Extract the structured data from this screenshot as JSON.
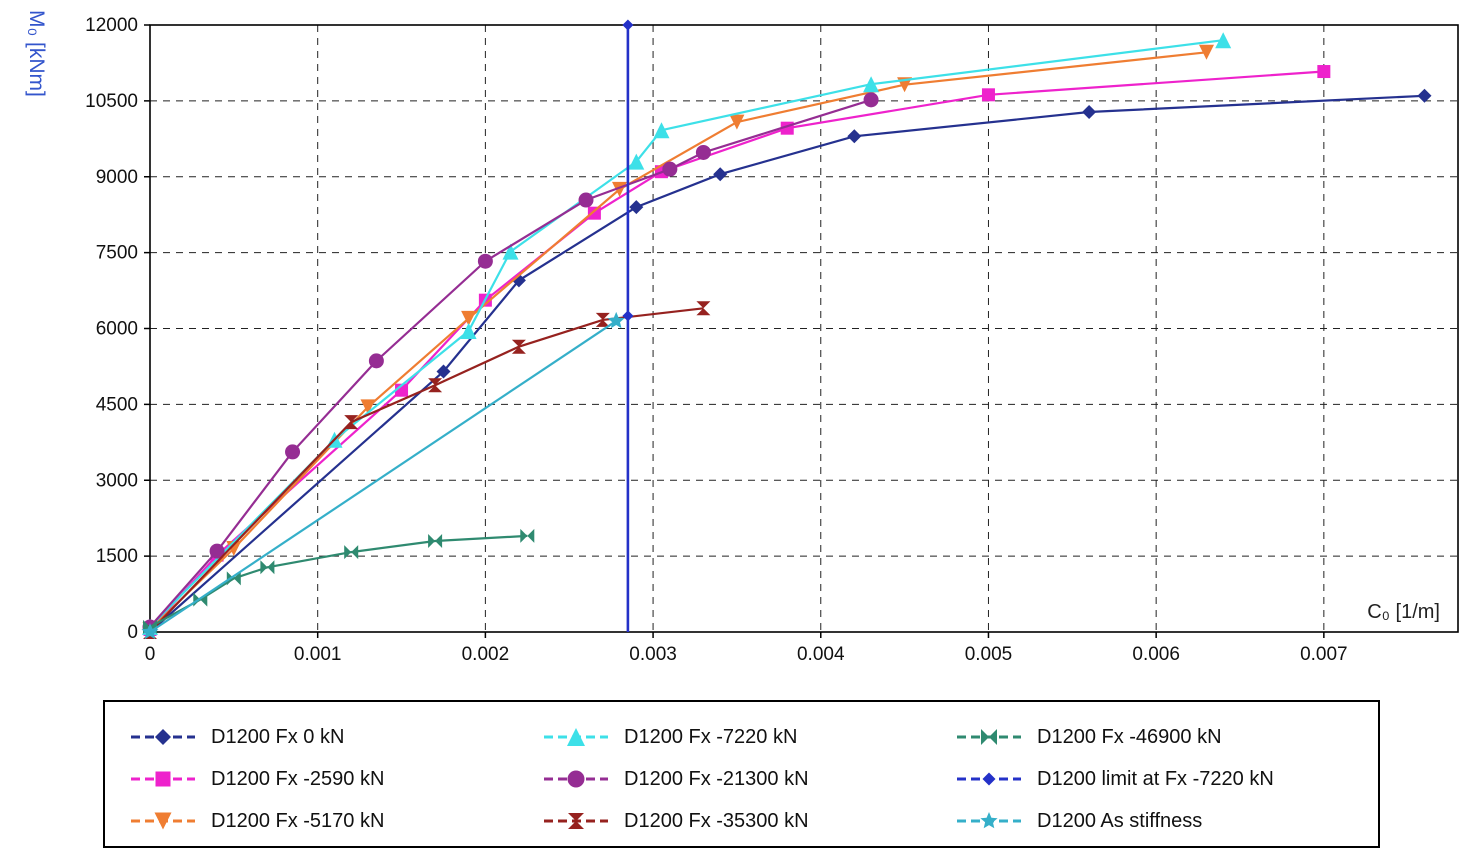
{
  "chart_data": {
    "type": "line",
    "title": "",
    "xlabel": "C₀ [1/m]",
    "ylabel": "M₀ [kNm]",
    "xlabel_color": "#222222",
    "ylabel_color": "#3355cc",
    "xlim": [
      0,
      0.0078
    ],
    "ylim": [
      0,
      12000
    ],
    "xticks": [
      0,
      0.001,
      0.002,
      0.003,
      0.004,
      0.005,
      0.006,
      0.007
    ],
    "yticks": [
      0,
      1500,
      3000,
      4500,
      6000,
      7500,
      9000,
      10500,
      12000
    ],
    "grid": "dashed",
    "legend_position": "bottom",
    "legend_columns": 3,
    "series": [
      {
        "name": "D1200 Fx 0 kN",
        "color": "#25318F",
        "marker": "diamond",
        "marker_size": 7,
        "points": [
          [
            0,
            0
          ],
          [
            0.00175,
            5150
          ],
          [
            0.0022,
            6950
          ],
          [
            0.0029,
            8400
          ],
          [
            0.0034,
            9050
          ],
          [
            0.0042,
            9800
          ],
          [
            0.0056,
            10280
          ],
          [
            0.0076,
            10600
          ]
        ]
      },
      {
        "name": "D1200 Fx -2590 kN",
        "color": "#EE22CC",
        "marker": "square",
        "marker_size": 6.5,
        "points": [
          [
            0,
            50
          ],
          [
            0.0004,
            1520
          ],
          [
            0.0015,
            4780
          ],
          [
            0.002,
            6560
          ],
          [
            0.00265,
            8280
          ],
          [
            0.00305,
            9100
          ],
          [
            0.0038,
            9960
          ],
          [
            0.005,
            10620
          ],
          [
            0.007,
            11080
          ]
        ]
      },
      {
        "name": "D1200 Fx -5170 kN",
        "color": "#EF7D32",
        "marker": "triangle-down",
        "marker_size": 7.5,
        "points": [
          [
            0,
            50
          ],
          [
            0.0005,
            1650
          ],
          [
            0.0013,
            4450
          ],
          [
            0.0019,
            6200
          ],
          [
            0.0028,
            8750
          ],
          [
            0.0035,
            10080
          ],
          [
            0.0045,
            10820
          ],
          [
            0.0063,
            11460
          ]
        ]
      },
      {
        "name": "D1200 Fx -7220 kN",
        "color": "#3DE0E8",
        "marker": "triangle-up",
        "marker_size": 8,
        "points": [
          [
            0,
            100
          ],
          [
            0.0011,
            3800
          ],
          [
            0.0019,
            5950
          ],
          [
            0.00215,
            7520
          ],
          [
            0.0029,
            9300
          ],
          [
            0.00305,
            9920
          ],
          [
            0.0043,
            10830
          ],
          [
            0.0064,
            11700
          ]
        ]
      },
      {
        "name": "D1200 Fx -21300 kN",
        "color": "#952D93",
        "marker": "circle",
        "marker_size": 7.5,
        "points": [
          [
            0,
            100
          ],
          [
            0.0004,
            1600
          ],
          [
            0.00085,
            3560
          ],
          [
            0.00135,
            5360
          ],
          [
            0.002,
            7330
          ],
          [
            0.0026,
            8540
          ],
          [
            0.0031,
            9150
          ],
          [
            0.0033,
            9480
          ],
          [
            0.0043,
            10520
          ]
        ]
      },
      {
        "name": "D1200 Fx -35300 kN",
        "color": "#96221F",
        "marker": "hourglass",
        "marker_size": 7,
        "points": [
          [
            0,
            0
          ],
          [
            0.0012,
            4150
          ],
          [
            0.0017,
            4880
          ],
          [
            0.0022,
            5640
          ],
          [
            0.0027,
            6170
          ],
          [
            0.0033,
            6400
          ]
        ]
      },
      {
        "name": "D1200 Fx -46900 kN",
        "color": "#2F8A70",
        "marker": "bowtie",
        "marker_size": 7,
        "points": [
          [
            0,
            100
          ],
          [
            0.0003,
            640
          ],
          [
            0.0005,
            1060
          ],
          [
            0.0007,
            1280
          ],
          [
            0.0012,
            1580
          ],
          [
            0.0017,
            1800
          ],
          [
            0.00225,
            1900
          ]
        ]
      },
      {
        "name": "D1200 limit at Fx -7220 kN",
        "color": "#2431C8",
        "marker": "diamond",
        "marker_size": 5.5,
        "line_width": 2.6,
        "points": [
          [
            0.00285,
            0
          ],
          [
            0.00285,
            12000
          ]
        ],
        "marker_points": [
          [
            0.00285,
            6250
          ],
          [
            0.00285,
            12000
          ]
        ]
      },
      {
        "name": "D1200 As stiffness",
        "color": "#35AFC9",
        "marker": "star",
        "marker_size": 9,
        "points": [
          [
            0,
            0
          ],
          [
            0.00278,
            6150
          ]
        ],
        "marker_points": [
          [
            0,
            0
          ],
          [
            0.00278,
            6150
          ]
        ]
      }
    ]
  }
}
